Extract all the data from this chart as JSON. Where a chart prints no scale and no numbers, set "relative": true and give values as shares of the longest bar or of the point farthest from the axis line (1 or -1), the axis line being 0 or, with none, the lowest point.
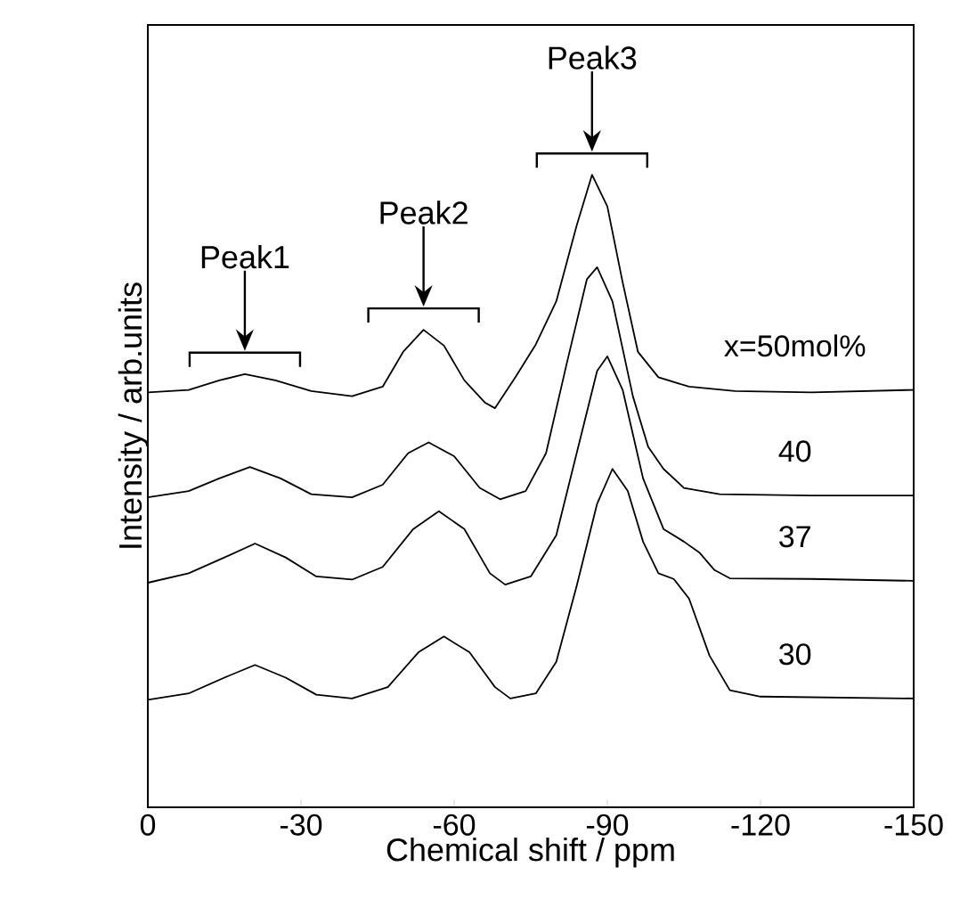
{
  "chart_data": {
    "type": "line",
    "relative": true,
    "xlabel": "Chemical shift / ppm",
    "ylabel": "Intensity / arb.units",
    "xlim": [
      0,
      -150
    ],
    "xticks": [
      0,
      -30,
      -60,
      -90,
      -120,
      -150
    ],
    "marker": "none",
    "line_style": "solid",
    "grid": false,
    "legend": false,
    "tick_labels": "x",
    "annotations": [
      "Peak1",
      "Peak2",
      "Peak3"
    ],
    "series": [
      {
        "name": "x=50mol%",
        "color": "#000000",
        "x": [
          0,
          -8,
          -14,
          -19,
          -25,
          -32,
          -40,
          -46,
          -50,
          -54,
          -58,
          -62,
          -66,
          -68,
          -72,
          -76,
          -80,
          -84,
          -87,
          -90,
          -93,
          -96,
          -100,
          -106,
          -115,
          -130,
          -150
        ],
        "values": [
          0.656,
          0.66,
          0.675,
          0.685,
          0.675,
          0.658,
          0.65,
          0.665,
          0.72,
          0.755,
          0.73,
          0.675,
          0.64,
          0.631,
          0.68,
          0.732,
          0.8,
          0.92,
          1.0,
          0.95,
          0.83,
          0.72,
          0.68,
          0.665,
          0.658,
          0.656,
          0.66
        ]
      },
      {
        "name": "40",
        "color": "#000000",
        "x": [
          0,
          -8,
          -14,
          -20,
          -26,
          -32,
          -40,
          -46,
          -51,
          -55,
          -60,
          -65,
          -69,
          -74,
          -78,
          -82,
          -86,
          -88,
          -91,
          -95,
          -98,
          -101,
          -105,
          -112,
          -130,
          -150
        ],
        "values": [
          0.49,
          0.5,
          0.52,
          0.538,
          0.52,
          0.495,
          0.49,
          0.51,
          0.56,
          0.577,
          0.555,
          0.505,
          0.487,
          0.5,
          0.56,
          0.7,
          0.835,
          0.854,
          0.8,
          0.65,
          0.57,
          0.535,
          0.505,
          0.495,
          0.493,
          0.493
        ]
      },
      {
        "name": "37",
        "color": "#000000",
        "x": [
          0,
          -8,
          -15,
          -21,
          -27,
          -33,
          -40,
          -46,
          -52,
          -57,
          -62,
          -67,
          -70,
          -75,
          -80,
          -84,
          -88,
          -90,
          -93,
          -97,
          -101,
          -105,
          -108,
          -111,
          -114,
          -130,
          -150
        ],
        "values": [
          0.355,
          0.37,
          0.395,
          0.417,
          0.395,
          0.365,
          0.36,
          0.38,
          0.44,
          0.468,
          0.44,
          0.37,
          0.352,
          0.365,
          0.43,
          0.56,
          0.69,
          0.713,
          0.66,
          0.52,
          0.44,
          0.42,
          0.403,
          0.375,
          0.362,
          0.361,
          0.358
        ]
      },
      {
        "name": "30",
        "color": "#000000",
        "x": [
          0,
          -8,
          -15,
          -21,
          -27,
          -33,
          -40,
          -47,
          -53,
          -58,
          -63,
          -68,
          -71,
          -76,
          -80,
          -84,
          -88,
          -91,
          -94,
          -97,
          -100,
          -103,
          -106,
          -110,
          -114,
          -120,
          -150
        ],
        "values": [
          0.17,
          0.18,
          0.205,
          0.225,
          0.205,
          0.178,
          0.172,
          0.19,
          0.245,
          0.27,
          0.245,
          0.19,
          0.172,
          0.18,
          0.23,
          0.35,
          0.48,
          0.535,
          0.5,
          0.42,
          0.37,
          0.361,
          0.33,
          0.24,
          0.185,
          0.175,
          0.172
        ]
      }
    ]
  }
}
